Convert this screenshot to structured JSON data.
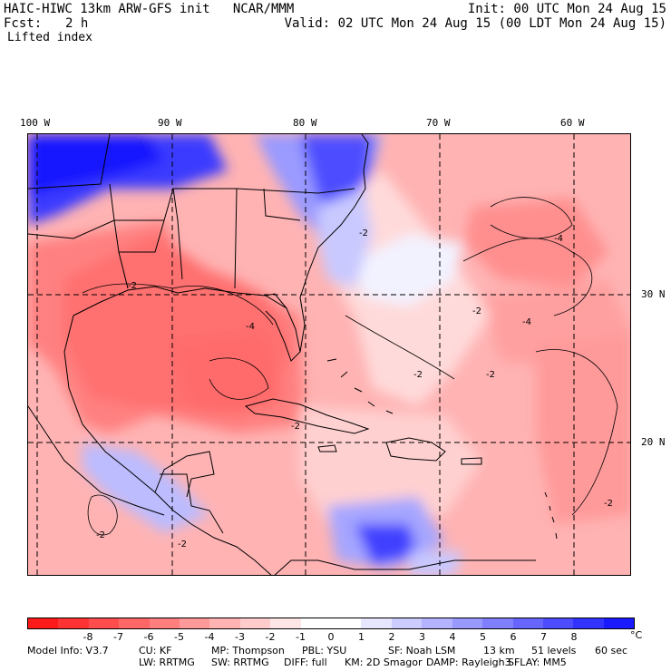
{
  "header": {
    "title": "HAIC-HIWC 13km ARW-GFS init   NCAR/MMM",
    "init": "Init: 00 UTC Mon 24 Aug 15",
    "fcst_label": "Fcst:",
    "fcst_value": "2 h",
    "valid": "Valid: 02 UTC Mon 24 Aug 15 (00 LDT Mon 24 Aug 15)",
    "field": "Lifted index"
  },
  "map": {
    "lon_labels": [
      "100 W",
      "90 W",
      "80 W",
      "70 W",
      "60 W"
    ],
    "lat_labels": [
      "30 N",
      "20 N"
    ],
    "contour_labels": [
      "-2",
      "-2",
      "-2",
      "-4",
      "-2",
      "-4",
      "-4",
      "-2",
      "-2",
      "-2",
      "-2",
      "-2"
    ]
  },
  "colorbar": {
    "colors": [
      "#ff1a1a",
      "#ff3333",
      "#ff4d4d",
      "#ff6666",
      "#ff7f7f",
      "#ff9999",
      "#ffb3b3",
      "#ffcccc",
      "#ffe6e6",
      "#ffffff",
      "#ffffff",
      "#e6e6ff",
      "#ccccff",
      "#b3b3ff",
      "#9999ff",
      "#7f7fff",
      "#6666ff",
      "#4d4dff",
      "#3333ff",
      "#1a1aff"
    ],
    "ticks": [
      "-8",
      "-7",
      "-6",
      "-5",
      "-4",
      "-3",
      "-2",
      "-1",
      "0",
      "1",
      "2",
      "3",
      "4",
      "5",
      "6",
      "7",
      "8"
    ],
    "unit": "°C"
  },
  "model_info": {
    "line1": [
      "Model Info: V3.7",
      "CU: KF",
      "MP: Thompson",
      "PBL: YSU",
      "SF: Noah LSM",
      "13 km",
      "51 levels",
      "60 sec"
    ],
    "line2": [
      "LW: RRTMG",
      "SW: RRTMG",
      "DIFF: full",
      "KM: 2D Smagor",
      "DAMP: Rayleigh3",
      "SFLAY: MM5"
    ]
  }
}
